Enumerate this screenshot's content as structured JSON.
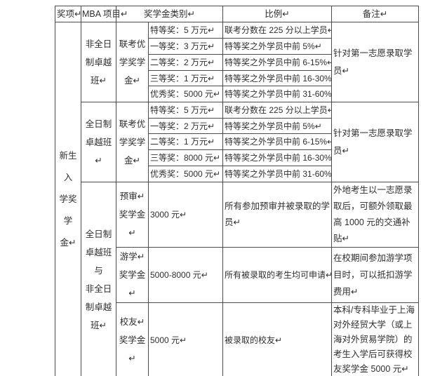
{
  "colors": {
    "background": "#ffffff",
    "text": "#2f2f2f",
    "table_border": "#4b4b4b"
  },
  "table": {
    "headers": {
      "award": "奖项↵",
      "program": "MBA 项目↵",
      "category": "奖学金类别↵",
      "ratio": "比例↵",
      "remark": "备注↵"
    },
    "award_group": "新生入\n学奖学\n金↵",
    "blocks": [
      {
        "program": "非全日\n制卓越\n班↵",
        "category": "联考优\n学奖学\n金↵",
        "remark": "针对第一志愿录取学员↵",
        "rows": [
          {
            "prize": "特等奖：5 万元↵",
            "ratio": "联考分数在 225 分以上学员↵"
          },
          {
            "prize": "一等奖：3 万元↵",
            "ratio": "特等奖之外学员中前 5%↵"
          },
          {
            "prize": "二等奖：2 万元↵",
            "ratio": "特等奖之外学员中前 6-15%↵"
          },
          {
            "prize": "三等奖：1 万元↵",
            "ratio": "特等奖之外学员中前 16-30%↵"
          },
          {
            "prize": "优秀奖：5000 元↵",
            "ratio": "特等奖之外学员中前 31-60%↵"
          }
        ]
      },
      {
        "program": "全日制\n卓越班↵",
        "category": "联考优\n学奖学\n金↵",
        "remark": "针对第一志愿录取学员↵",
        "rows": [
          {
            "prize": "特等奖：5 万元↵",
            "ratio": "联考分数在 225 分以上学员↵"
          },
          {
            "prize": "一等奖：2 万元↵",
            "ratio": "特等奖之外学员中前 5%↵"
          },
          {
            "prize": "二等奖：1 万元↵",
            "ratio": "特等奖之外学员中前 6-15%↵"
          },
          {
            "prize": "三等奖：8000 元↵",
            "ratio": "特等奖之外学员中前 16-30%↵"
          },
          {
            "prize": "优秀奖：5000 元↵",
            "ratio": "特等奖之外学员中前 31-60%↵"
          }
        ]
      }
    ],
    "bottom": {
      "program": "全日制\n卓越班\n与\n非全日\n制卓越\n班↵",
      "rows": [
        {
          "category": "预审↵\n奖学金↵",
          "amount": "3000 元↵",
          "ratio": "所有参加预审并被录取的学员↵",
          "remark": "外地考生以一志愿录取后，可额外领取最高 1000 元的交通补贴↵"
        },
        {
          "category": "游学↵\n奖学金↵",
          "amount": "5000-8000 元↵",
          "ratio": "所有被录取的考生均可申请↵",
          "remark": "在校期间参加游学项目时，可以抵扣游学费用↵"
        },
        {
          "category": "校友↵\n奖学金↵",
          "amount": "5000 元↵",
          "ratio": "被录取的校友↵",
          "remark": "本科/专科毕业于上海对外经贸大学（或上海对外贸易学院）的考生入学后可获得校友奖学金 5000 元↵"
        }
      ]
    }
  },
  "stray_mark": "."
}
